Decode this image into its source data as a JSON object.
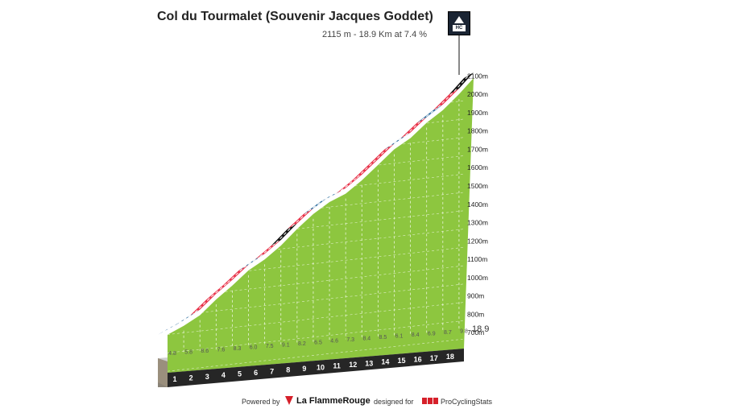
{
  "header": {
    "title": "Col du Tourmalet (Souvenir Jacques Goddet)",
    "subtitle": "2115 m - 18.9 Km at 7.4 %",
    "category": "HC",
    "icon": "mountain-icon"
  },
  "footer": {
    "powered_by": "Powered by",
    "brand": "La FlammeRouge",
    "designed_for": "designed for",
    "partner": "ProCyclingStats"
  },
  "colors": {
    "terrain": "#8dc63f",
    "road_easy": "#2e6e9e",
    "road_hard": "#e8334a",
    "road_very_hard": "#111111",
    "grid": "#dddddd"
  },
  "chart_data": {
    "type": "area",
    "title": "Col du Tourmalet (Souvenir Jacques Goddet)",
    "subtitle": "2115 m - 18.9 Km at 7.4 %",
    "xlabel": "",
    "ylabel": "",
    "x_unit": "km",
    "km_labels": [
      "1",
      "2",
      "3",
      "4",
      "5",
      "6",
      "7",
      "8",
      "9",
      "10",
      "11",
      "12",
      "13",
      "14",
      "15",
      "16",
      "17",
      "18"
    ],
    "final_distance_label": "18.9",
    "gradients": [
      4.8,
      5.8,
      8.6,
      7.6,
      8.3,
      6.0,
      7.5,
      9.1,
      8.2,
      6.5,
      4.6,
      7.3,
      8.4,
      8.5,
      6.1,
      8.4,
      6.9,
      8.7,
      9.8
    ],
    "y_tick_labels": [
      "700m",
      "800m",
      "900m",
      "1000m",
      "1100m",
      "1200m",
      "1300m",
      "1400m",
      "1500m",
      "1600m",
      "1700m",
      "1800m",
      "1900m",
      "2000m",
      "2100m"
    ],
    "y_ticks": [
      700,
      800,
      900,
      1000,
      1100,
      1200,
      1300,
      1400,
      1500,
      1600,
      1700,
      1800,
      1900,
      2000,
      2100
    ],
    "ylim": [
      560,
      2115
    ],
    "start_altitude": 715,
    "summit_altitude": 2115,
    "summit_km": 18.9,
    "total_km": 18.9,
    "grid": true,
    "gradient_color_scale": [
      {
        "max": 6.9,
        "color": "#2e6e9e"
      },
      {
        "max": 8.9,
        "color": "#e8334a"
      },
      {
        "max": 100,
        "color": "#111111"
      }
    ]
  }
}
